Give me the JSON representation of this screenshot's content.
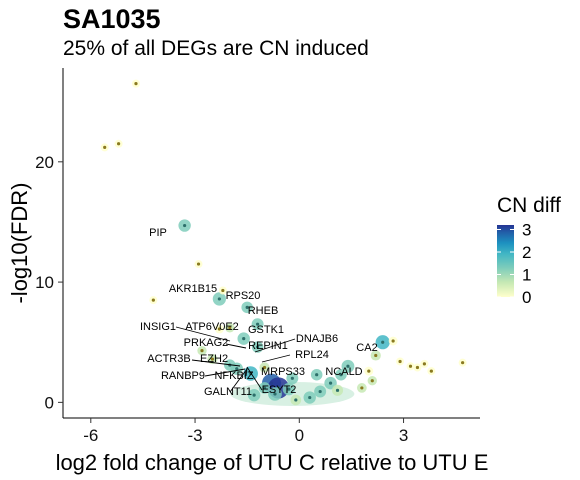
{
  "chart_data": {
    "type": "scatter",
    "title": "SA1035",
    "subtitle": "25% of all DEGs are CN induced",
    "xlabel": "log2 fold change of UTU C relative to UTU E",
    "ylabel": "-log10(FDR)",
    "xlim": [
      -6.8,
      5.2
    ],
    "ylim": [
      -1.3,
      27.8
    ],
    "x_ticks": [
      -6,
      -3,
      0,
      3
    ],
    "x_tick_labels": [
      "-6",
      "-3",
      "0",
      "3"
    ],
    "y_ticks": [
      0,
      10,
      20
    ],
    "y_tick_labels": [
      "0",
      "10",
      "20"
    ],
    "grid": false,
    "legend": {
      "title": "CN diff",
      "position": "right",
      "scale": "continuous",
      "range": [
        0,
        3.2
      ],
      "ticks": [
        0,
        1,
        2,
        3
      ],
      "tick_labels": [
        "0",
        "1",
        "2",
        "3"
      ],
      "colors": [
        "#ffffcc",
        "#c7e9b4",
        "#7fcdbb",
        "#41b6c4",
        "#1d91c0",
        "#225ea8",
        "#253494"
      ]
    },
    "points": [
      {
        "x": -4.7,
        "y": 26.5,
        "cn": 0
      },
      {
        "x": -5.6,
        "y": 21.2,
        "cn": 0
      },
      {
        "x": -5.2,
        "y": 21.5,
        "cn": 0
      },
      {
        "x": -3.3,
        "y": 14.7,
        "cn": 1.0
      },
      {
        "x": -2.9,
        "y": 11.5,
        "cn": 0
      },
      {
        "x": -4.2,
        "y": 8.5,
        "cn": 0
      },
      {
        "x": -2.3,
        "y": 8.6,
        "cn": 1.2
      },
      {
        "x": -2.2,
        "y": 9.3,
        "cn": 0
      },
      {
        "x": -1.5,
        "y": 7.9,
        "cn": 0.8
      },
      {
        "x": -1.2,
        "y": 6.5,
        "cn": 0.9
      },
      {
        "x": -1.6,
        "y": 5.3,
        "cn": 1.0
      },
      {
        "x": -1.2,
        "y": 4.6,
        "cn": 0.8
      },
      {
        "x": -2.0,
        "y": 6.2,
        "cn": 0.3
      },
      {
        "x": -2.3,
        "y": 6.1,
        "cn": 0.2
      },
      {
        "x": -2.8,
        "y": 4.3,
        "cn": 0.3
      },
      {
        "x": -2.5,
        "y": 3.6,
        "cn": 0.5
      },
      {
        "x": -2.0,
        "y": 3.1,
        "cn": 0.8
      },
      {
        "x": -1.8,
        "y": 2.8,
        "cn": 1.0
      },
      {
        "x": -1.4,
        "y": 2.4,
        "cn": 1.5
      },
      {
        "x": -1.0,
        "y": 2.9,
        "cn": 0.5
      },
      {
        "x": -0.8,
        "y": 1.6,
        "cn": 2.5
      },
      {
        "x": -0.6,
        "y": 1.2,
        "cn": 3.0
      },
      {
        "x": -0.3,
        "y": 1.1,
        "cn": 1.0
      },
      {
        "x": -0.7,
        "y": 0.7,
        "cn": 1.3
      },
      {
        "x": -1.3,
        "y": 0.6,
        "cn": 1.0
      },
      {
        "x": -1.0,
        "y": 1.2,
        "cn": 0.8
      },
      {
        "x": -0.2,
        "y": 2.0,
        "cn": 0.9
      },
      {
        "x": 0.3,
        "y": 0.4,
        "cn": 1.0
      },
      {
        "x": 0.6,
        "y": 0.9,
        "cn": 0.9
      },
      {
        "x": 0.9,
        "y": 1.6,
        "cn": 1.0
      },
      {
        "x": 1.2,
        "y": 2.3,
        "cn": 0.8
      },
      {
        "x": 1.4,
        "y": 3.0,
        "cn": 1.1
      },
      {
        "x": 1.1,
        "y": 1.0,
        "cn": 0.7
      },
      {
        "x": 0.5,
        "y": 2.3,
        "cn": 0.8
      },
      {
        "x": 2.4,
        "y": 5.0,
        "cn": 1.4
      },
      {
        "x": 2.2,
        "y": 3.9,
        "cn": 0.5
      },
      {
        "x": 2.7,
        "y": 5.1,
        "cn": 0.2
      },
      {
        "x": 2.9,
        "y": 3.4,
        "cn": 0
      },
      {
        "x": 3.2,
        "y": 3.0,
        "cn": 0
      },
      {
        "x": 3.4,
        "y": 2.9,
        "cn": 0
      },
      {
        "x": 3.6,
        "y": 3.2,
        "cn": 0
      },
      {
        "x": 3.8,
        "y": 2.6,
        "cn": 0
      },
      {
        "x": 2.1,
        "y": 1.8,
        "cn": 0.3
      },
      {
        "x": 2.0,
        "y": 2.6,
        "cn": 0.2
      },
      {
        "x": 4.7,
        "y": 3.3,
        "cn": 0
      },
      {
        "x": 1.8,
        "y": 1.2,
        "cn": 0.4
      },
      {
        "x": -0.1,
        "y": 0.2,
        "cn": 0.6
      }
    ],
    "annotations": [
      "PIP",
      "AKR1B15",
      "RPS20",
      "RHEB",
      "INSIG1",
      "ATP6V0E2",
      "GSTK1",
      "DNAJB6",
      "PRKAG2",
      "REPIN1",
      "RPL24",
      "CA2",
      "ACTR3B",
      "EZH2",
      "MRPS33",
      "NCALD",
      "RANBP9",
      "NFKBIZ",
      "GALNT11",
      "ESYT2"
    ]
  }
}
